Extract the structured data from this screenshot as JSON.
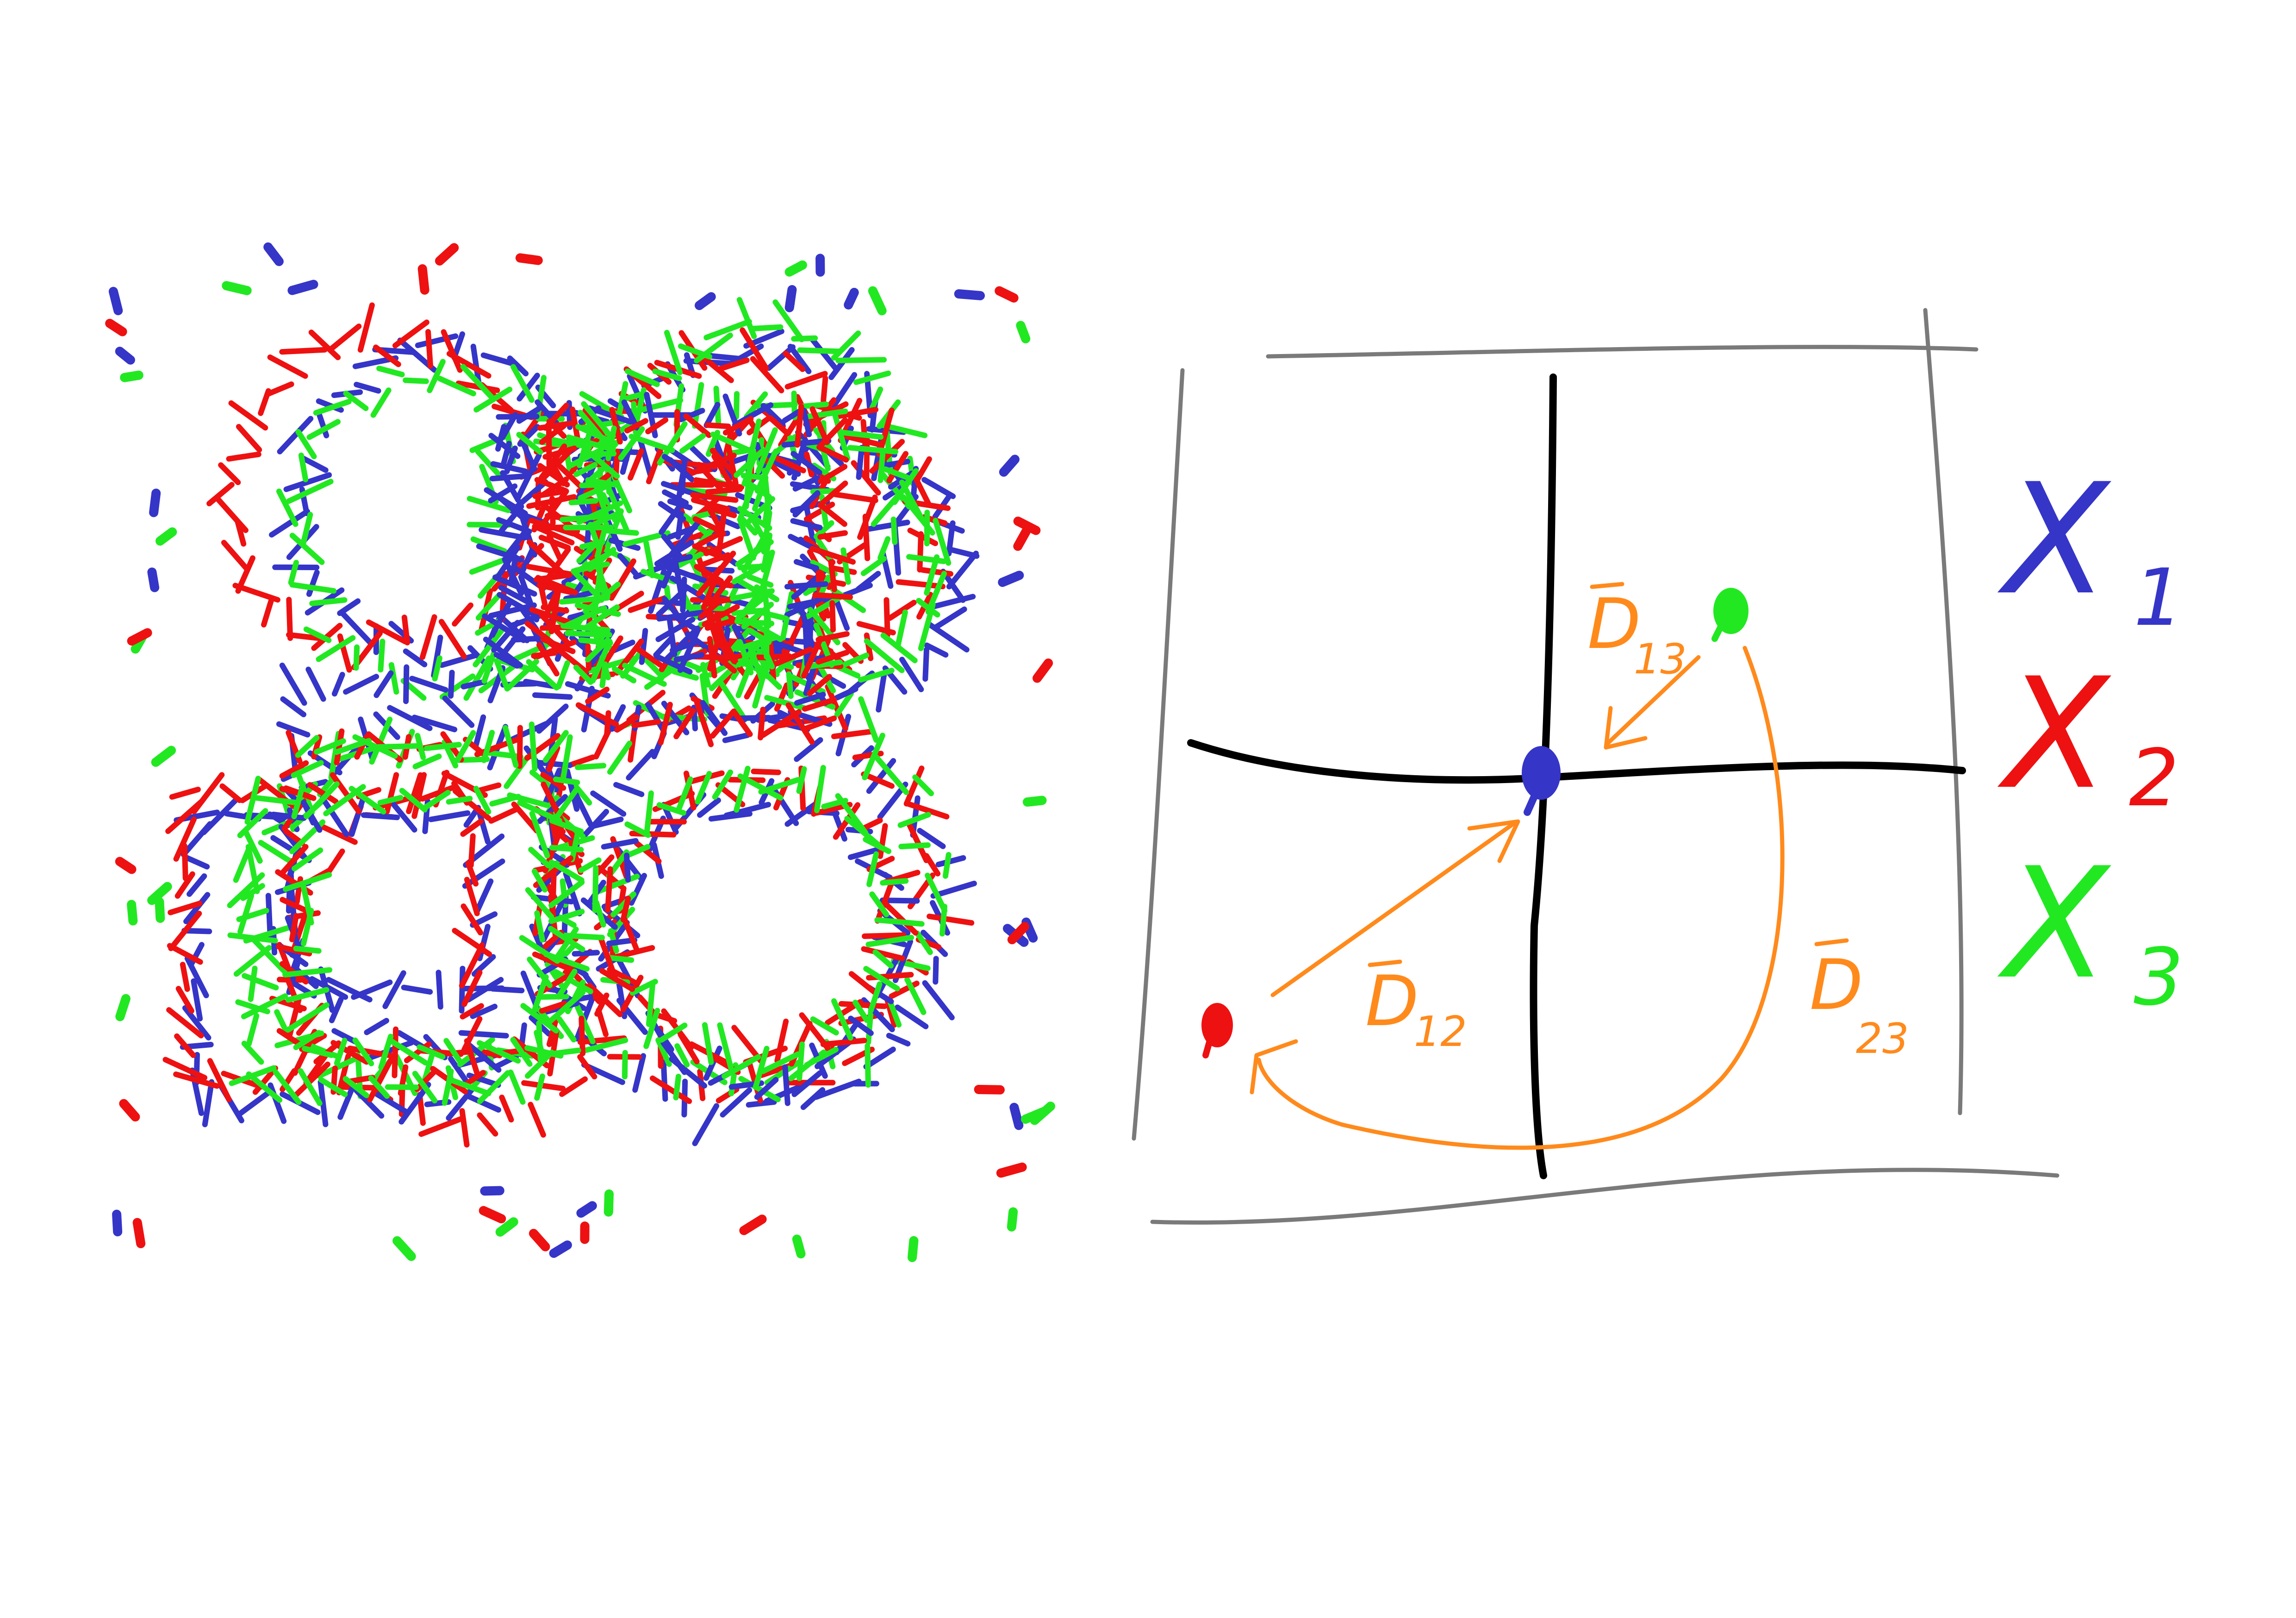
{
  "colors": {
    "x1": "#3535c8",
    "x2": "#ee1111",
    "x3": "#22e822",
    "distance": "#ff8a1c",
    "axis": "#000000",
    "frame": "#7a7a7a"
  },
  "legend": [
    {
      "letter": "X",
      "sub": "1",
      "color_key": "x1"
    },
    {
      "letter": "X",
      "sub": "2",
      "color_key": "x2"
    },
    {
      "letter": "X",
      "sub": "3",
      "color_key": "x3"
    }
  ],
  "distances": [
    {
      "letter": "D",
      "sub": "13"
    },
    {
      "letter": "D",
      "sub": "12"
    },
    {
      "letter": "D",
      "sub": "23"
    }
  ],
  "points": [
    {
      "name": "x1",
      "color_key": "x1"
    },
    {
      "name": "x2",
      "color_key": "x2"
    },
    {
      "name": "x3",
      "color_key": "x3"
    }
  ],
  "icons": {
    "scatter": "noisy-point-cloud-icon"
  }
}
